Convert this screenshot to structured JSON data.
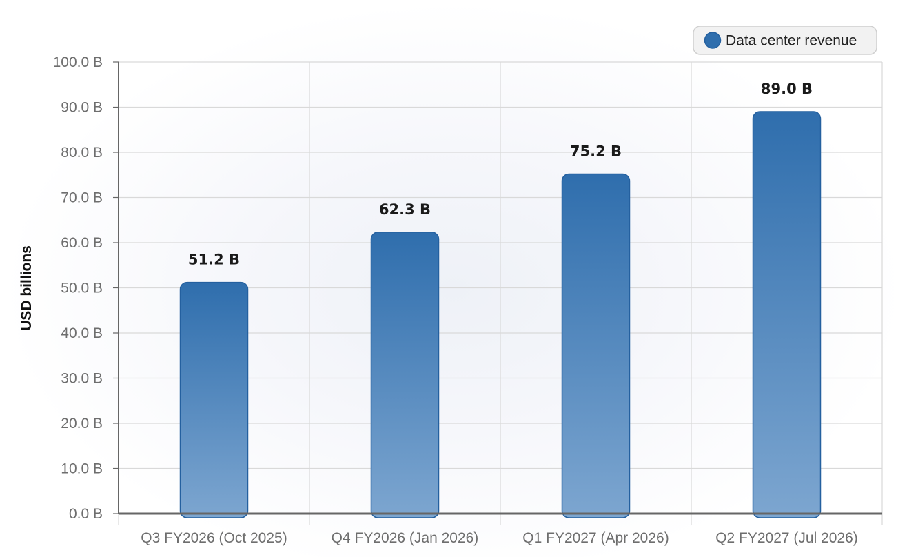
{
  "chart_data": {
    "type": "bar",
    "categories": [
      "Q3 FY2026 (Oct 2025)",
      "Q4 FY2026 (Jan 2026)",
      "Q1 FY2027 (Apr 2026)",
      "Q2 FY2027 (Jul 2026)"
    ],
    "series": [
      {
        "name": "Data center revenue",
        "values": [
          51.2,
          62.3,
          75.2,
          89.0
        ],
        "color": "#2f6ead"
      }
    ],
    "value_labels": [
      "51.2 B",
      "62.3 B",
      "75.2 B",
      "89.0 B"
    ],
    "title": "",
    "xlabel": "",
    "ylabel": "USD billions",
    "ylim": [
      0,
      100
    ],
    "yticks": [
      0,
      10,
      20,
      30,
      40,
      50,
      60,
      70,
      80,
      90,
      100
    ],
    "ytick_labels": [
      "0.0 B",
      "10.0 B",
      "20.0 B",
      "30.0 B",
      "40.0 B",
      "50.0 B",
      "60.0 B",
      "70.0 B",
      "80.0 B",
      "90.0 B",
      "100.0 B"
    ],
    "grid": true,
    "legend_position": "top-right"
  },
  "colors": {
    "bar_top": "#2f6ead",
    "bar_bottom": "#7da6d0",
    "bar_stroke": "#24609f",
    "grid": "#d9d9d9",
    "axis": "#666666"
  }
}
